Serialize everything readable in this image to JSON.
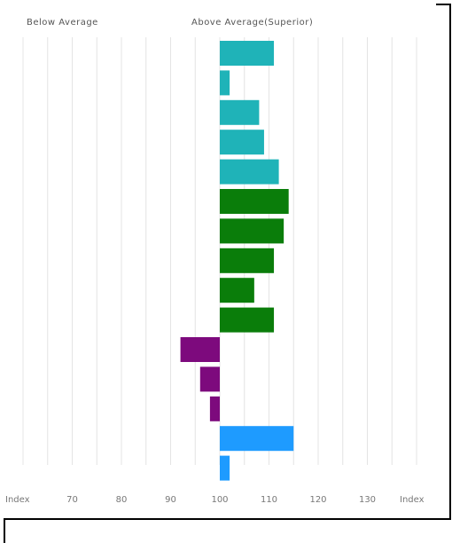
{
  "header": {
    "below_label": "Below Average",
    "above_label": "Above Average(Superior)"
  },
  "chart_data": {
    "type": "bar",
    "orientation": "horizontal",
    "baseline": 100,
    "xlim": [
      60,
      140
    ],
    "x_ticks": [
      70,
      80,
      90,
      100,
      110,
      120,
      130
    ],
    "x_end_labels": [
      "Index",
      "Index"
    ],
    "grid": true,
    "categories": [
      "",
      "",
      "",
      "",
      "",
      "",
      "",
      "",
      "",
      "",
      "",
      "",
      "",
      "",
      ""
    ],
    "values": [
      111,
      102,
      108,
      109,
      112,
      114,
      113,
      111,
      107,
      111,
      92,
      96,
      98,
      115,
      102
    ],
    "bar_colors": [
      "#1fb3b8",
      "#1fb3b8",
      "#1fb3b8",
      "#1fb3b8",
      "#1fb3b8",
      "#0a7d0a",
      "#0a7d0a",
      "#0a7d0a",
      "#0a7d0a",
      "#0a7d0a",
      "#7d0a7d",
      "#7d0a7d",
      "#7d0a7d",
      "#1e9bff",
      "#1e9bff"
    ]
  }
}
